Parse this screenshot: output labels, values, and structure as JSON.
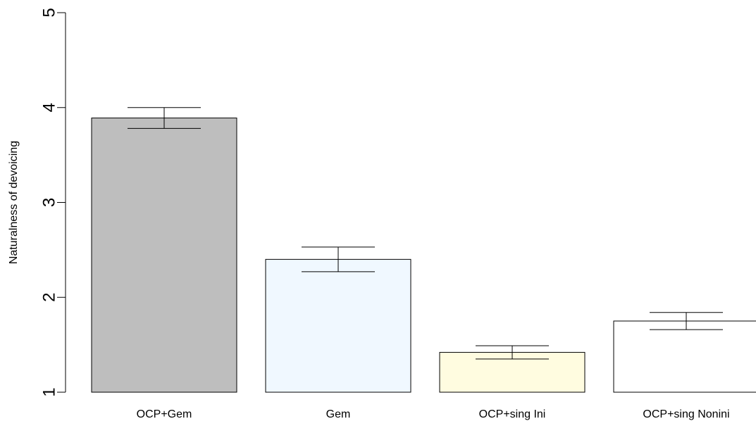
{
  "chart_data": {
    "type": "bar",
    "title": "",
    "xlabel": "",
    "ylabel": "Naturalness of devoicing",
    "ylim": [
      1,
      5
    ],
    "yticks": [
      "1",
      "2",
      "3",
      "4",
      "5"
    ],
    "categories": [
      "OCP+Gem",
      "Gem",
      "OCP+sing Ini",
      "OCP+sing Nonini"
    ],
    "values": [
      3.89,
      2.4,
      1.42,
      1.75
    ],
    "error_low": [
      3.78,
      2.27,
      1.35,
      1.66
    ],
    "error_high": [
      4.0,
      2.53,
      1.49,
      1.84
    ],
    "colors": [
      "#bebebe",
      "#f0f8ff",
      "#fffce0",
      "#ffffff"
    ],
    "grid": false,
    "legend": "none"
  }
}
